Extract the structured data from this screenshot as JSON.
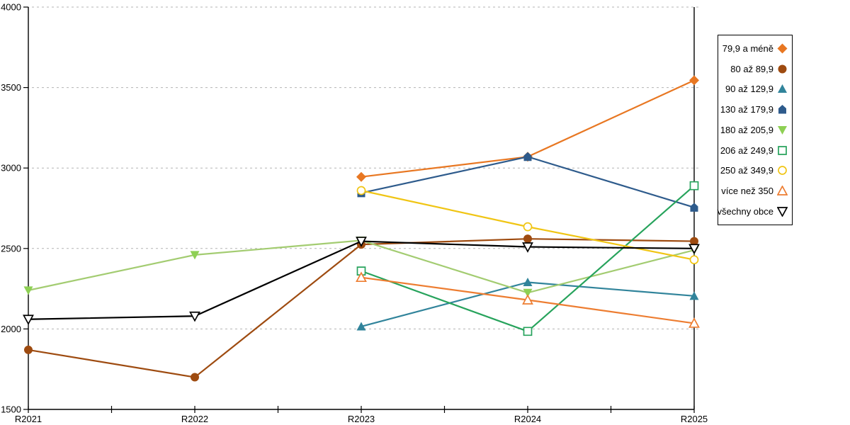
{
  "chart_data": {
    "type": "line",
    "title": "",
    "xlabel": "",
    "ylabel": "",
    "x_categories": [
      "R2021",
      "R2022",
      "R2023",
      "R2024",
      "R2025"
    ],
    "ylim": [
      1500,
      4000
    ],
    "ytick_step": 500,
    "ytick_labels": [
      "1500",
      "2000",
      "2500",
      "3000",
      "3500",
      "4000"
    ],
    "grid": "horizontal-dashed",
    "grid_color": "#b3b3b3",
    "axis_color": "#000000",
    "legend_position": "right-box",
    "series": [
      {
        "name": "79,9 a méně",
        "marker": "diamond",
        "fill": "filled",
        "color": "#E87722",
        "marker_color": "#E87722",
        "values": [
          null,
          null,
          2945,
          3070,
          3545
        ]
      },
      {
        "name": "80 až 89,9",
        "marker": "circle",
        "fill": "filled",
        "color": "#9E4B10",
        "marker_color": "#9E4B10",
        "values": [
          1870,
          1700,
          2525,
          2560,
          2545
        ]
      },
      {
        "name": "90 až 129,9",
        "marker": "triangle-up",
        "fill": "filled",
        "color": "#31849B",
        "marker_color": "#31849B",
        "values": [
          null,
          null,
          2015,
          2290,
          2205
        ]
      },
      {
        "name": "130 až 179,9",
        "marker": "pentagon",
        "fill": "filled",
        "color": "#2E5B8C",
        "marker_color": "#2E5B8C",
        "values": [
          null,
          null,
          2845,
          3070,
          2755
        ]
      },
      {
        "name": "180 až 205,9",
        "marker": "triangle-down",
        "fill": "filled",
        "color": "#A3CC71",
        "marker_color": "#8ED054",
        "values": [
          2240,
          2460,
          2550,
          2225,
          2490
        ]
      },
      {
        "name": "206 až 249,9",
        "marker": "square",
        "fill": "hollow",
        "color": "#27A35C",
        "marker_color": "#27A35C",
        "values": [
          null,
          null,
          2360,
          1985,
          2890
        ]
      },
      {
        "name": "250 až 349,9",
        "marker": "circle",
        "fill": "hollow",
        "color": "#F0C514",
        "marker_color": "#F0C514",
        "values": [
          null,
          null,
          2860,
          2635,
          2430
        ]
      },
      {
        "name": "více než 350",
        "marker": "triangle-up",
        "fill": "hollow",
        "color": "#ED7D31",
        "marker_color": "#ED7D31",
        "values": [
          null,
          null,
          2320,
          2180,
          2035
        ]
      },
      {
        "name": "všechny obce",
        "marker": "triangle-down",
        "fill": "hollow",
        "color": "#000000",
        "marker_color": "#000000",
        "values": [
          2060,
          2080,
          2545,
          2510,
          2500
        ]
      }
    ]
  }
}
